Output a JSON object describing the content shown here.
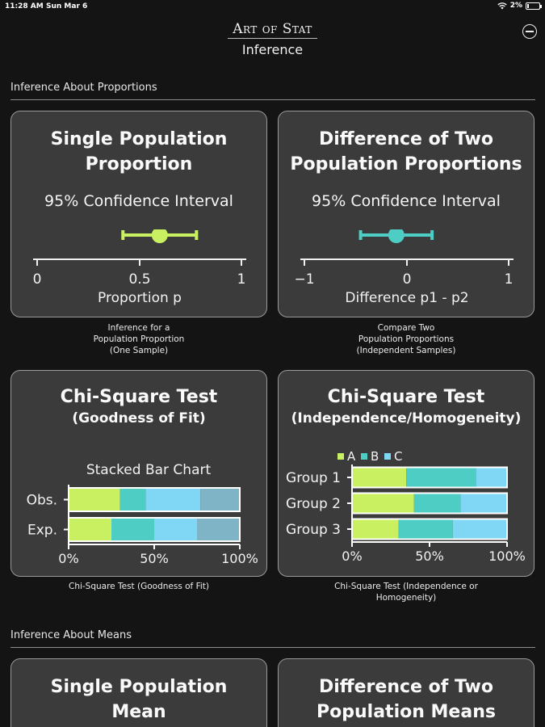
{
  "status_bar": {
    "time": "11:28 AM",
    "date": "Sun Mar 6",
    "battery": "2%"
  },
  "header": {
    "brand": "Art of Stat",
    "title": "Inference"
  },
  "sections": {
    "proportions": "Inference About Proportions",
    "means": "Inference About Means"
  },
  "cards": {
    "single_proportion": {
      "title_line1": "Single Population",
      "title_line2": "Proportion",
      "subtitle": "95% Confidence Interval",
      "ticks": [
        "0",
        "0.5",
        "1"
      ],
      "axis_label": "Proportion p",
      "caption": [
        "Inference for a",
        "Population Proportion",
        "(One Sample)"
      ]
    },
    "two_proportions": {
      "title_line1": "Difference of Two",
      "title_line2": "Population Proportions",
      "subtitle": "95% Confidence Interval",
      "ticks": [
        "−1",
        "0",
        "1"
      ],
      "axis_label": "Difference p1 - p2",
      "caption": [
        "Compare Two",
        "Population Proportions",
        "(Independent Samples)"
      ]
    },
    "chi_gof": {
      "title_line1": "Chi-Square Test",
      "title_line2": "(Goodness of Fit)",
      "chart_title": "Stacked Bar Chart",
      "caption": [
        "Chi-Square Test (Goodness of Fit)"
      ]
    },
    "chi_ind": {
      "title_line1": "Chi-Square Test",
      "title_line2": "(Independence/Homogeneity)",
      "caption": [
        "Chi-Square Test (Independence or",
        "Homogeneity)"
      ]
    },
    "single_mean": {
      "title_line1": "Single Population",
      "title_line2": "Mean"
    },
    "two_means": {
      "title_line1": "Difference of Two",
      "title_line2": "Population Means"
    }
  },
  "colors": {
    "green": "#c8f060",
    "teal": "#4ecdc4",
    "sky": "#7fd6f5",
    "slate": "#7fb3c6"
  },
  "chart_data": [
    {
      "type": "interval",
      "ticks": [
        0,
        0.5,
        1
      ],
      "estimate": 0.6,
      "ci": [
        0.42,
        0.78
      ],
      "xlabel": "Proportion p"
    },
    {
      "type": "interval",
      "ticks": [
        -1,
        0,
        1
      ],
      "estimate": -0.1,
      "ci": [
        -0.45,
        0.25
      ],
      "xlabel": "Difference p1 - p2"
    },
    {
      "type": "bar",
      "stacked": true,
      "title": "Stacked Bar Chart",
      "categories": [
        "Obs.",
        "Exp."
      ],
      "series": [
        {
          "values": [
            30,
            25
          ]
        },
        {
          "values": [
            15,
            25
          ]
        },
        {
          "values": [
            32,
            25
          ]
        },
        {
          "values": [
            23,
            25
          ]
        }
      ],
      "xticks": [
        "0%",
        "50%",
        "100%"
      ]
    },
    {
      "type": "bar",
      "stacked": true,
      "categories": [
        "Group 1",
        "Group 2",
        "Group 3"
      ],
      "series": [
        {
          "name": "A",
          "values": [
            35,
            40,
            30
          ]
        },
        {
          "name": "B",
          "values": [
            45,
            30,
            35
          ]
        },
        {
          "name": "C",
          "values": [
            20,
            30,
            35
          ]
        }
      ],
      "xticks": [
        "0%",
        "50%",
        "100%"
      ]
    }
  ]
}
